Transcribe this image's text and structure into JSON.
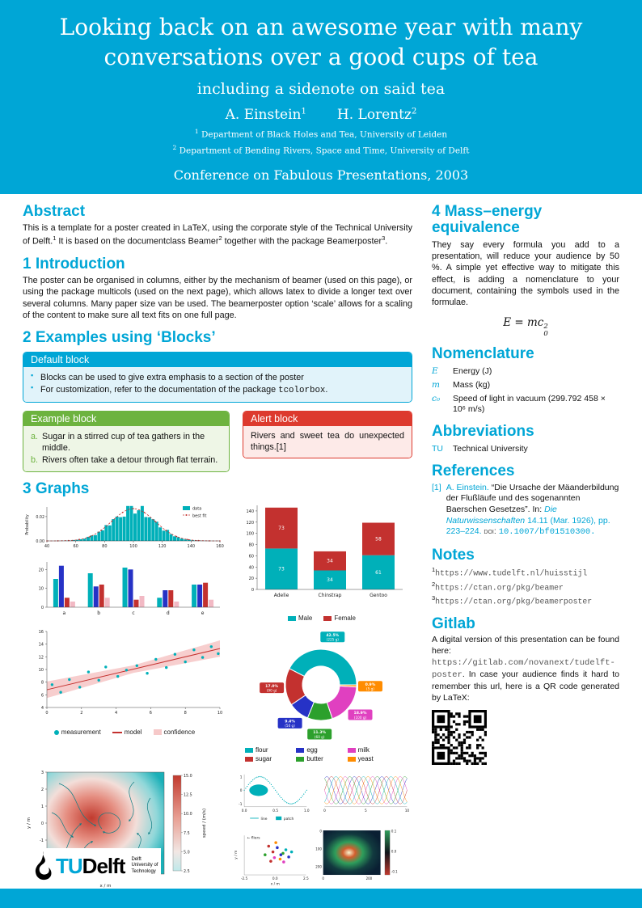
{
  "colors": {
    "accent": "#00a6d6",
    "alert_red": "#dd3a2e",
    "example_green": "#6db33f",
    "chart_teal": "#00b0b9",
    "chart_red": "#c3312f"
  },
  "header": {
    "title_line1": "Looking back on an awesome year with many",
    "title_line2": "conversations over a good cups of tea",
    "subtitle": "including a sidenote on said tea",
    "authors": [
      {
        "name": "A. Einstein",
        "sup": "1"
      },
      {
        "name": "H. Lorentz",
        "sup": "2"
      }
    ],
    "affiliations": [
      {
        "sup": "1",
        "text": "Department of Black Holes and Tea, University of Leiden"
      },
      {
        "sup": "2",
        "text": "Department of Bending Rivers, Space and Time, University of Delft"
      }
    ],
    "conference": "Conference on Fabulous Presentations, 2003"
  },
  "abstract": {
    "heading": "Abstract",
    "p1": "This is a template for a poster created in LaTeX, using the corporate style of the Technical University of Delft.",
    "sup1": "1",
    "p2": " It is based on the documentclass Beamer",
    "sup2": "2",
    "p3": " together with the package Beamerposter",
    "sup3": "3",
    "p4": "."
  },
  "introduction": {
    "heading": "1 Introduction",
    "body": "The poster can be organised in columns, either by the mechanism of beamer (used on this page), or using the package multicols (used on the next page), which allows latex to divide a longer text over several columns. Many paper size van be used. The beamerposter option ‘scale’ allows for a scaling of the content to make sure all text fits on one full page."
  },
  "examples": {
    "heading": "2 Examples using ‘Blocks’",
    "default_block": {
      "title": "Default block",
      "item1": "Blocks can be used to give extra emphasis to a section of the poster",
      "item2_pre": "For customization, refer to the documentation of the package ",
      "item2_code": "tcolorbox",
      "item2_post": "."
    },
    "example_block": {
      "title": "Example block",
      "items": [
        {
          "label": "a.",
          "text": "Sugar in a stirred cup of tea gathers in the middle."
        },
        {
          "label": "b.",
          "text": "Rivers often take a detour through flat terrain."
        }
      ]
    },
    "alert_block": {
      "title": "Alert block",
      "text": "Rivers and sweet tea do unexpected things.[1]"
    }
  },
  "graphs": {
    "heading": "3 Graphs"
  },
  "mass_energy": {
    "heading": "4 Mass–energy equivalence",
    "body": "They say every formula you add to a presentation, will reduce your audience by 50 %. A simple yet effective way to mitigate this effect, is adding a nomenclature to your document, containing the symbols used in the formulae.",
    "equation": {
      "lhs": "E",
      "rel": "=",
      "rhs": "mc",
      "sup": "2",
      "sub": "0"
    }
  },
  "nomenclature": {
    "heading": "Nomenclature",
    "items": [
      {
        "symbol": "E",
        "desc": "Energy (J)"
      },
      {
        "symbol": "m",
        "desc": "Mass (kg)"
      },
      {
        "symbol": "c₀",
        "desc": "Speed of light in vacuum (299.792 458 × 10⁶ m/s)"
      }
    ]
  },
  "abbreviations": {
    "heading": "Abbreviations",
    "items": [
      {
        "abbr": "TU",
        "desc": "Technical University"
      }
    ]
  },
  "references": {
    "heading": "References",
    "label": "[1]",
    "authors": "A. Einstein.",
    "title": "“Die Ursache der Mäanderbildung der Flußläufe und des sogenannten Baerschen Gesetzes”.",
    "in_label": "In:",
    "journal": "Die Naturwissenschaften",
    "volume": "14.11 (Mar. 1926), pp. 223–224.",
    "doi_label": "doi:",
    "doi": "10.1007/bf01510300."
  },
  "notes": {
    "heading": "Notes",
    "items": [
      {
        "sup": "1",
        "url": "https://www.tudelft.nl/huisstijl"
      },
      {
        "sup": "2",
        "url": "https://ctan.org/pkg/beamer"
      },
      {
        "sup": "3",
        "url": "https://ctan.org/pkg/beamerposter"
      }
    ]
  },
  "gitlab": {
    "heading": "Gitlab",
    "p1": "A digital version of this presentation can be found here: ",
    "url": "https://gitlab.com/novanext/tudelft-poster",
    "p2": ". In case your audience finds it hard to remember this url, here is a QR code generated by ",
    "latex": "LaTeX",
    "p3": ":"
  },
  "logo": {
    "tu": "TU",
    "delft": "Delft",
    "line1": "Delft",
    "line2": "University of",
    "line3": "Technology"
  },
  "chart_data": {
    "histogram": {
      "type": "histogram",
      "ylabel": "Probability",
      "x_ticks": [
        40,
        60,
        80,
        100,
        120,
        140,
        160
      ],
      "y_ticks": [
        "0.00",
        "0.02"
      ],
      "mean": 100,
      "sigma": 15,
      "legend": [
        {
          "label": "data",
          "color": "#00b0b9"
        },
        {
          "label": "best fit",
          "color": "#c3312f"
        }
      ]
    },
    "grouped_bar": {
      "type": "bar",
      "categories": [
        "a",
        "b",
        "c",
        "d",
        "e"
      ],
      "series": [
        {
          "color": "#00b0b9",
          "values": [
            15,
            18,
            21,
            5,
            12
          ]
        },
        {
          "color": "#2632c6",
          "values": [
            22,
            11,
            20,
            9,
            12
          ]
        },
        {
          "color": "#c3312f",
          "values": [
            5,
            12,
            4,
            9,
            13
          ]
        },
        {
          "color": "#f2b9c4",
          "values": [
            3,
            5,
            6,
            3,
            4
          ]
        }
      ],
      "y_ticks": [
        0,
        10,
        20
      ]
    },
    "stacked_bar": {
      "type": "stacked-bar",
      "categories": [
        "Adelie",
        "Chinstrap",
        "Gentoo"
      ],
      "series": [
        {
          "name": "Male",
          "color": "#00b0b9",
          "values": [
            73,
            34,
            61
          ]
        },
        {
          "name": "Female",
          "color": "#c3312f",
          "values": [
            73,
            34,
            58
          ]
        }
      ],
      "y_ticks": [
        0,
        20,
        40,
        60,
        80,
        100,
        120,
        140
      ],
      "y_max": 150
    },
    "regression": {
      "type": "scatter",
      "x_ticks": [
        0,
        2,
        4,
        6,
        8,
        10
      ],
      "y_ticks": [
        4,
        6,
        8,
        10,
        12,
        14,
        16
      ],
      "points": [
        [
          0.3,
          7.6
        ],
        [
          0.8,
          6.4
        ],
        [
          1.3,
          8.4
        ],
        [
          1.9,
          7.2
        ],
        [
          2.4,
          9.6
        ],
        [
          3.0,
          8.3
        ],
        [
          3.4,
          10.4
        ],
        [
          4.1,
          8.9
        ],
        [
          4.6,
          9.9
        ],
        [
          5.2,
          10.6
        ],
        [
          5.8,
          9.4
        ],
        [
          6.3,
          11.6
        ],
        [
          6.9,
          10.3
        ],
        [
          7.4,
          12.4
        ],
        [
          8.0,
          11.2
        ],
        [
          8.5,
          13.1
        ],
        [
          9.0,
          11.9
        ],
        [
          9.5,
          13.6
        ],
        [
          9.9,
          12.5
        ]
      ],
      "fit": {
        "intercept": 6.8,
        "slope": 0.65
      },
      "legend": [
        {
          "label": "measurement",
          "color": "#00b0b9"
        },
        {
          "label": "model",
          "color": "#c3312f"
        },
        {
          "label": "confidence",
          "color": "#f6c9c9"
        }
      ]
    },
    "donut": {
      "type": "pie",
      "slices": [
        {
          "name": "flour",
          "grams": 225,
          "pct": "42.5%",
          "color": "#00b0b9"
        },
        {
          "name": "sugar",
          "grams": 90,
          "pct": "17.0%",
          "color": "#c3312f"
        },
        {
          "name": "egg",
          "grams": 50,
          "pct": "9.4%",
          "color": "#2632c6"
        },
        {
          "name": "butter",
          "grams": 60,
          "pct": "11.3%",
          "color": "#2ca02c"
        },
        {
          "name": "milk",
          "grams": 100,
          "pct": "18.9%",
          "color": "#e040c0"
        },
        {
          "name": "yeast",
          "grams": 5,
          "pct": "0.9%",
          "color": "#ff8c00"
        }
      ]
    },
    "streamplot": {
      "type": "stream",
      "xlabel": "x / m",
      "ylabel": "y / m",
      "x_ticks": [
        -2,
        0,
        2
      ],
      "y_ticks": [
        -3,
        -2,
        -1,
        0,
        1,
        2,
        3
      ],
      "colorbar": {
        "label": "speed / (m/s)",
        "ticks": [
          "15.0",
          "12.5",
          "10.0",
          "7.5",
          "5.0",
          "2.5"
        ]
      }
    },
    "minis": {
      "sine": {
        "x_ticks": [
          "0.0",
          "0.5",
          "1.0"
        ],
        "y_ticks": [
          "1",
          "0",
          "-1"
        ],
        "legend": [
          {
            "label": "line"
          },
          {
            "label": "patch"
          }
        ]
      },
      "braid": {
        "x_ticks": [
          0,
          5,
          10
        ],
        "colors": [
          "#c3312f",
          "#2632c6",
          "#2ca02c",
          "#e040c0",
          "#ff8c00",
          "#00b0b9"
        ]
      },
      "flier_scatter": {
        "xlabel": "x / m",
        "ylabel": "y / m",
        "x_ticks": [
          "-2.5",
          "0.0",
          "2.5"
        ],
        "annotation": "← fliers"
      },
      "image": {
        "x_ticks": [
          0,
          200
        ],
        "y_ticks": [
          0,
          100,
          200
        ],
        "colorbar_ticks": [
          "0.1",
          "0.0",
          "-0.1"
        ]
      }
    }
  }
}
